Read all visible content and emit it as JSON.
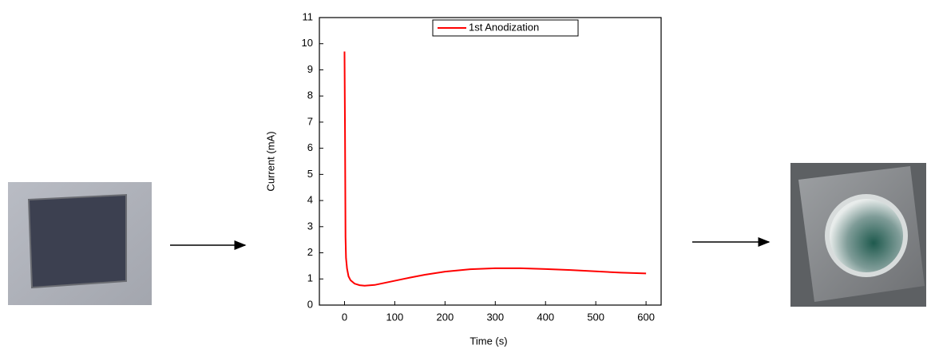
{
  "chart_data": {
    "type": "line",
    "x_label": "Time (s)",
    "y_label": "Current (mA)",
    "xlim": [
      -50,
      630
    ],
    "xticks": [
      0,
      100,
      200,
      300,
      400,
      500,
      600
    ],
    "ylim": [
      0,
      11
    ],
    "yticks": [
      0,
      1,
      2,
      3,
      4,
      5,
      6,
      7,
      8,
      9,
      10,
      11
    ],
    "legend": "top-center",
    "series": [
      {
        "name": "1st Anodization",
        "color": "#ff0000",
        "x": [
          0,
          1,
          2,
          3,
          5,
          8,
          12,
          20,
          30,
          40,
          60,
          80,
          100,
          130,
          160,
          200,
          250,
          300,
          350,
          400,
          450,
          500,
          550,
          600
        ],
        "values": [
          9.7,
          6.6,
          2.6,
          1.8,
          1.4,
          1.1,
          0.95,
          0.82,
          0.76,
          0.74,
          0.77,
          0.85,
          0.93,
          1.05,
          1.16,
          1.28,
          1.37,
          1.41,
          1.41,
          1.38,
          1.34,
          1.29,
          1.24,
          1.21
        ]
      }
    ]
  }
}
